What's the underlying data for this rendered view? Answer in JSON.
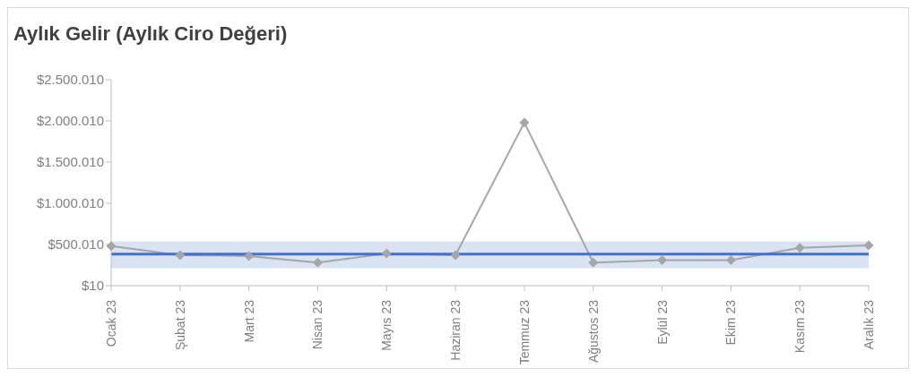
{
  "chart_data": {
    "type": "line",
    "title": "Aylık Gelir (Aylık Ciro Değeri)",
    "categories": [
      "Ocak 23",
      "Şubat 23",
      "Mart 23",
      "Nisan 23",
      "Mayıs 23",
      "Haziran 23",
      "Temmuz 23",
      "Ağustos 23",
      "Eylül 23",
      "Ekim 23",
      "Kasım 23",
      "Aralık 23"
    ],
    "series": [
      {
        "color": "#a6a6a6",
        "values": [
          480000,
          370000,
          360000,
          280000,
          390000,
          370000,
          1980000,
          280000,
          310000,
          310000,
          460000,
          490000
        ]
      }
    ],
    "ylim": [
      10,
      2500010
    ],
    "yticks": [
      {
        "value": 10,
        "label": "$10"
      },
      {
        "value": 500010,
        "label": "$500.010"
      },
      {
        "value": 1000010,
        "label": "$1.000.010"
      },
      {
        "value": 1500010,
        "label": "$1.500.010"
      },
      {
        "value": 2000010,
        "label": "$2.000.010"
      },
      {
        "value": 2500010,
        "label": "$2.500.010"
      }
    ],
    "ref_lines": [
      {
        "axis": "y",
        "value": 382000,
        "color": "#4472c4"
      }
    ],
    "bands": [
      {
        "axis": "y",
        "from": 213000,
        "to": 535000,
        "color": "#dae3f3"
      }
    ],
    "marker": "diamond",
    "line_style": "solid",
    "grid": false,
    "legend": false
  }
}
